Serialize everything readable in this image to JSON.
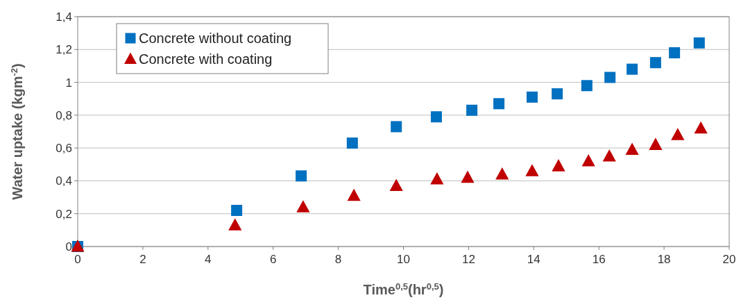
{
  "chart_data": {
    "type": "scatter",
    "xlabel": "Time$^{0,5}$(hr$^{0,5}$)",
    "ylabel": "Water uptake (kgm$^{-2}$)",
    "xlim": [
      0,
      20
    ],
    "xticks": [
      0,
      2,
      4,
      6,
      8,
      10,
      12,
      14,
      16,
      18,
      20
    ],
    "ylim": [
      0,
      1.4
    ],
    "yticks": [
      0,
      {
        "value": 0.2,
        "label": "0,2"
      },
      {
        "value": 0.4,
        "label": "0,4"
      },
      {
        "value": 0.6,
        "label": "0,6"
      },
      {
        "value": 0.8,
        "label": "0,8"
      },
      1,
      {
        "value": 1.2,
        "label": "1,2"
      },
      {
        "value": 1.4,
        "label": "1,4"
      }
    ],
    "grid": "y",
    "legend": "top left",
    "series": [
      {
        "name": "Concrete without coating",
        "color": "#0070c0",
        "marker": "square",
        "x": [
          0,
          4.88,
          6.86,
          8.43,
          9.78,
          11.01,
          12.1,
          12.93,
          13.95,
          14.72,
          15.63,
          16.34,
          17.02,
          17.74,
          18.32,
          19.08
        ],
        "values": [
          0,
          0.22,
          0.43,
          0.63,
          0.73,
          0.79,
          0.83,
          0.87,
          0.91,
          0.93,
          0.98,
          1.03,
          1.08,
          1.12,
          1.18,
          1.24
        ]
      },
      {
        "name": "Concrete with coating",
        "color": "#c00000",
        "marker": "triangle",
        "x": [
          0,
          4.83,
          6.92,
          8.48,
          9.78,
          11.03,
          11.97,
          13.03,
          13.95,
          14.76,
          15.68,
          16.32,
          17.02,
          17.74,
          18.42,
          19.13
        ],
        "values": [
          0,
          0.13,
          0.24,
          0.31,
          0.37,
          0.41,
          0.42,
          0.44,
          0.46,
          0.49,
          0.52,
          0.55,
          0.59,
          0.62,
          0.68,
          0.72
        ]
      }
    ]
  }
}
